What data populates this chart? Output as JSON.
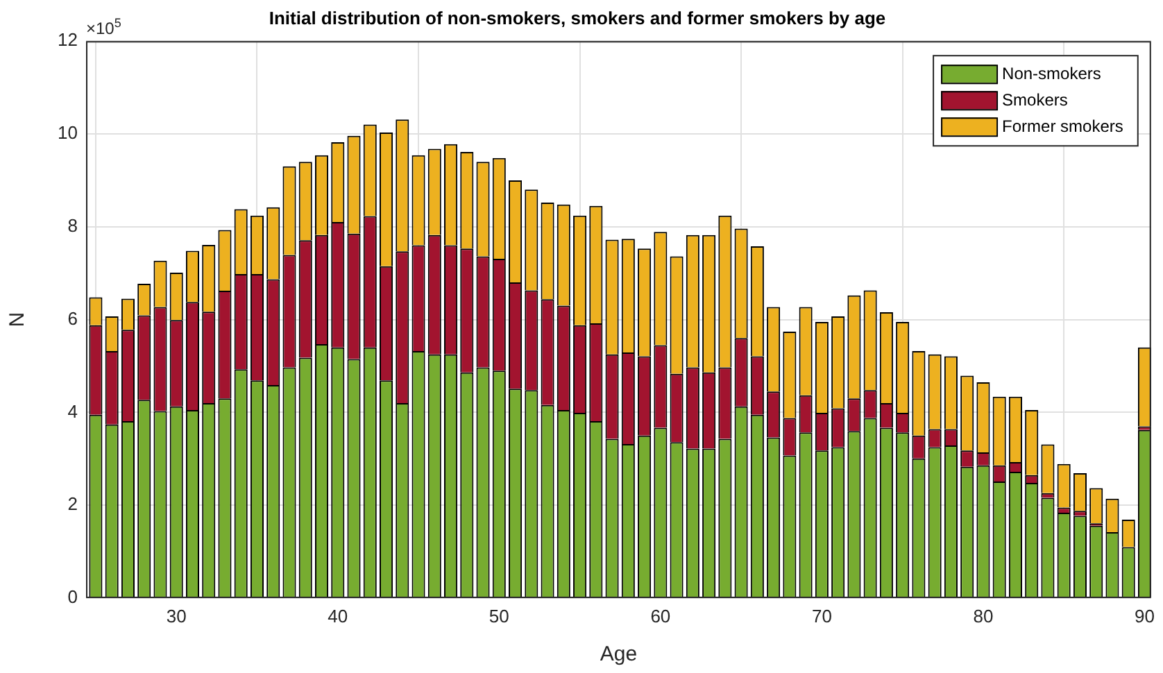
{
  "chart_data": {
    "type": "bar",
    "title": "Initial distribution of non-smokers, smokers and former smokers by age",
    "xlabel": "Age",
    "ylabel": "N",
    "stacked": true,
    "grid": true,
    "legend": "top right",
    "annotations": [
      "×10$^{5}$"
    ],
    "x": [
      25,
      26,
      27,
      28,
      29,
      30,
      31,
      32,
      33,
      34,
      35,
      36,
      37,
      38,
      39,
      40,
      41,
      42,
      43,
      44,
      45,
      46,
      47,
      48,
      49,
      50,
      51,
      52,
      53,
      54,
      55,
      56,
      57,
      58,
      59,
      60,
      61,
      62,
      63,
      64,
      65,
      66,
      67,
      68,
      69,
      70,
      71,
      72,
      73,
      74,
      75,
      76,
      77,
      78,
      79,
      80,
      81,
      82,
      83,
      84,
      85,
      86,
      87,
      88,
      89,
      90
    ],
    "xlim": [
      24.4,
      90.4
    ],
    "xticks": [
      30,
      40,
      50,
      60,
      70,
      80,
      90
    ],
    "ylim": [
      0,
      12
    ],
    "yticks": [
      0,
      2,
      4,
      6,
      8,
      10,
      12
    ],
    "series": [
      {
        "name": "Non-smokers",
        "color": "#77ac30",
        "values": [
          3.95,
          3.74,
          3.81,
          4.27,
          4.03,
          4.13,
          4.05,
          4.2,
          4.3,
          4.93,
          4.69,
          4.59,
          4.97,
          5.18,
          5.47,
          5.4,
          5.15,
          5.4,
          4.69,
          4.2,
          5.32,
          5.25,
          5.25,
          4.86,
          4.97,
          4.9,
          4.51,
          4.48,
          4.16,
          4.05,
          3.99,
          3.81,
          3.43,
          3.32,
          3.5,
          3.67,
          3.36,
          3.22,
          3.22,
          3.43,
          4.13,
          3.95,
          3.46,
          3.07,
          3.57,
          3.18,
          3.25,
          3.6,
          3.88,
          3.67,
          3.57,
          3.01,
          3.25,
          3.29,
          2.83,
          2.86,
          2.51,
          2.72,
          2.48,
          2.16,
          1.84,
          1.77,
          1.56,
          1.42,
          1.1,
          3.62
        ]
      },
      {
        "name": "Smokers",
        "color": "#a2142f",
        "values": [
          1.93,
          1.58,
          1.97,
          1.82,
          2.24,
          1.86,
          2.33,
          1.97,
          2.32,
          2.05,
          2.29,
          2.28,
          2.42,
          2.53,
          2.35,
          2.7,
          2.7,
          2.83,
          2.46,
          3.27,
          2.28,
          2.57,
          2.35,
          2.67,
          2.39,
          2.41,
          2.29,
          2.15,
          2.28,
          2.25,
          1.89,
          2.11,
          1.82,
          1.97,
          1.71,
          1.78,
          1.47,
          1.75,
          1.64,
          1.54,
          1.47,
          1.26,
          0.99,
          0.81,
          0.8,
          0.81,
          0.84,
          0.7,
          0.6,
          0.53,
          0.42,
          0.49,
          0.39,
          0.35,
          0.35,
          0.28,
          0.35,
          0.21,
          0.17,
          0.1,
          0.11,
          0.11,
          0.05,
          null,
          null,
          0.08
        ]
      },
      {
        "name": "Former smokers",
        "color": "#edb120",
        "values": [
          0.6,
          0.75,
          0.67,
          0.68,
          1.0,
          1.02,
          1.1,
          1.44,
          1.31,
          1.4,
          1.26,
          1.55,
          1.91,
          1.69,
          1.72,
          1.72,
          2.11,
          1.97,
          2.88,
          2.84,
          1.94,
          1.86,
          2.18,
          2.08,
          2.04,
          2.17,
          2.2,
          2.17,
          2.08,
          2.18,
          2.36,
          2.53,
          2.47,
          2.45,
          2.32,
          2.44,
          2.53,
          2.85,
          2.96,
          3.27,
          2.36,
          2.37,
          1.82,
          1.86,
          1.9,
          1.96,
          1.98,
          2.22,
          2.15,
          1.96,
          1.96,
          1.82,
          1.61,
          1.57,
          1.61,
          1.51,
          1.48,
          1.41,
          1.4,
          1.05,
          0.94,
          0.81,
          0.76,
          0.72,
          0.59,
          1.7
        ]
      }
    ]
  }
}
